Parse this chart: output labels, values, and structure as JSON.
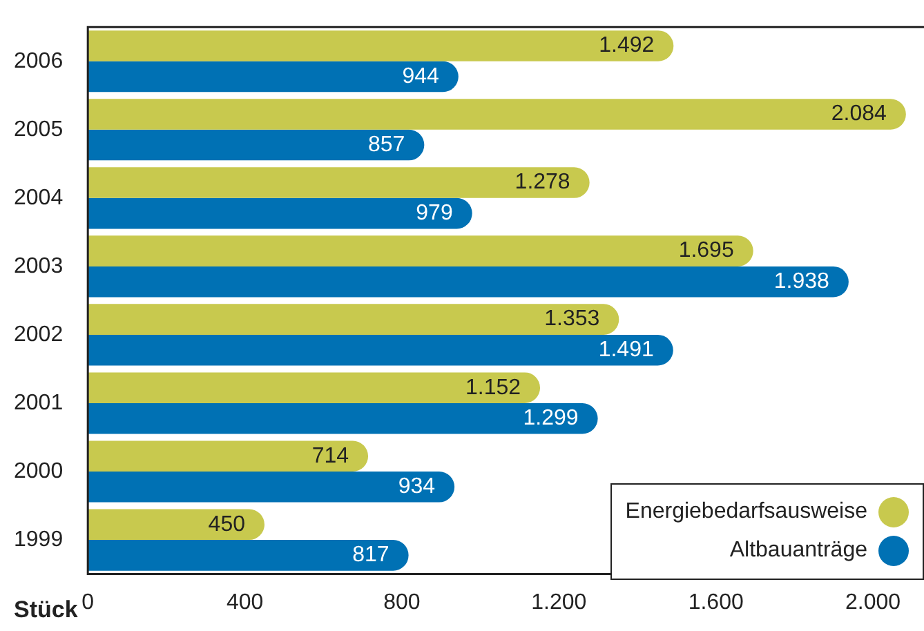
{
  "chart_data": {
    "type": "bar",
    "orientation": "horizontal",
    "xlabel": "Stück",
    "categories": [
      "2006",
      "2005",
      "2004",
      "2003",
      "2002",
      "2001",
      "2000",
      "1999"
    ],
    "series": [
      {
        "name": "Energiebedarfsausweise",
        "color": "#c8c94e",
        "values": [
          1492,
          2084,
          1278,
          1695,
          1353,
          1152,
          714,
          450
        ],
        "value_labels": [
          "1.492",
          "2.084",
          "1.278",
          "1.695",
          "1.353",
          "1.152",
          "714",
          "450"
        ]
      },
      {
        "name": "Altbauanträge",
        "color": "#0071b4",
        "values": [
          944,
          857,
          979,
          1938,
          1491,
          1299,
          934,
          817
        ],
        "value_labels": [
          "944",
          "857",
          "979",
          "1.938",
          "1.491",
          "1.299",
          "934",
          "817"
        ]
      }
    ],
    "xlim": [
      0,
      2130
    ],
    "xticks": [
      0,
      {
        "value": 400,
        "label": "400"
      },
      {
        "value": 800,
        "label": "800"
      },
      {
        "value": 1200,
        "label": "1.200"
      },
      {
        "value": 1600,
        "label": "1.600"
      },
      {
        "value": 2000,
        "label": "2.000"
      }
    ],
    "grid": false,
    "legend": "bottom right"
  }
}
